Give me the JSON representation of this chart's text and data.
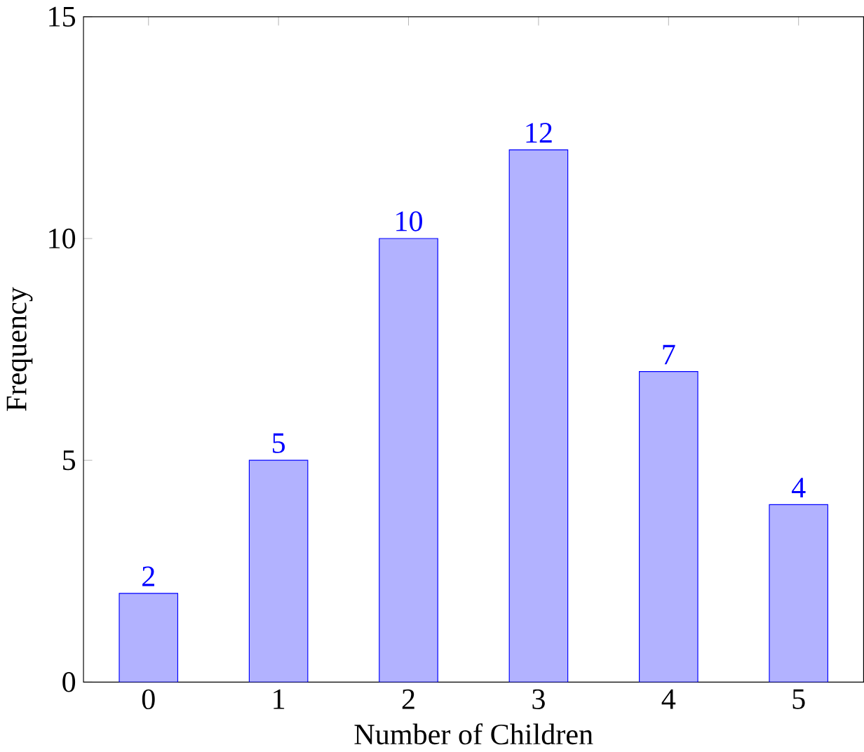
{
  "chart_data": {
    "type": "bar",
    "xlabel": "Number of Children",
    "ylabel": "Frequency",
    "categories": [
      "0",
      "1",
      "2",
      "3",
      "4",
      "5"
    ],
    "values": [
      2,
      5,
      10,
      12,
      7,
      4
    ],
    "color": "#0000ff",
    "ylim": [
      0,
      15
    ],
    "yticks": [
      0,
      5,
      10,
      15
    ],
    "data_labels": true
  }
}
